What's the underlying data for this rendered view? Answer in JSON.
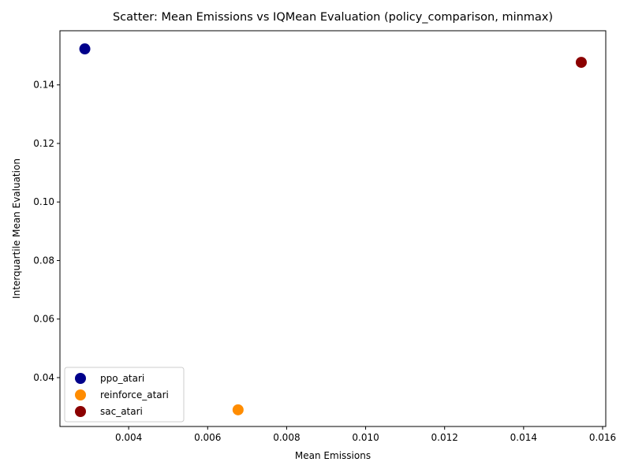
{
  "chart_data": {
    "type": "scatter",
    "title": "Scatter: Mean Emissions vs IQMean Evaluation (policy_comparison, minmax)",
    "xlabel": "Mean Emissions",
    "ylabel": "Interquartile Mean Evaluation",
    "xlim": [
      0.00226,
      0.01608
    ],
    "ylim": [
      0.0233,
      0.1585
    ],
    "xticks": [
      0.004,
      0.006,
      0.008,
      0.01,
      0.012,
      0.014,
      0.016
    ],
    "xtick_labels": [
      "0.004",
      "0.006",
      "0.008",
      "0.010",
      "0.012",
      "0.014",
      "0.016"
    ],
    "yticks": [
      0.04,
      0.06,
      0.08,
      0.1,
      0.12,
      0.14
    ],
    "ytick_labels": [
      "0.04",
      "0.06",
      "0.08",
      "0.10",
      "0.12",
      "0.14"
    ],
    "grid": false,
    "legend_position": "lower-left",
    "series": [
      {
        "name": "ppo_atari",
        "color": "#00008b",
        "points": [
          {
            "x": 0.00289,
            "y": 0.1523
          }
        ]
      },
      {
        "name": "reinforce_atari",
        "color": "#ff8c00",
        "points": [
          {
            "x": 0.00677,
            "y": 0.029
          }
        ]
      },
      {
        "name": "sac_atari",
        "color": "#8b0000",
        "points": [
          {
            "x": 0.01546,
            "y": 0.1477
          }
        ]
      }
    ]
  }
}
